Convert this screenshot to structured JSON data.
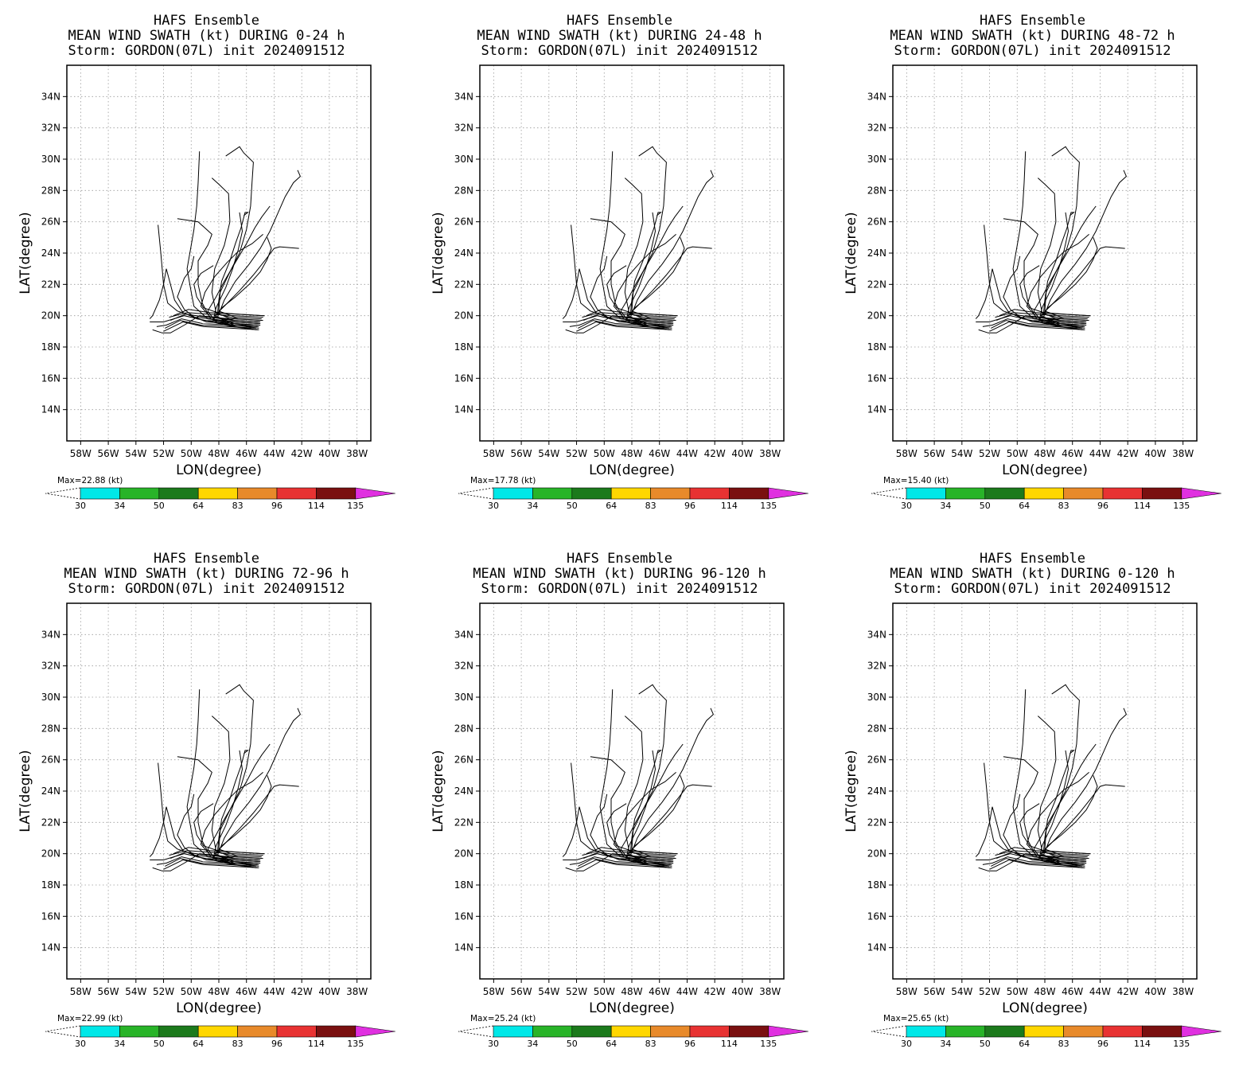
{
  "colorbar": {
    "levels": [
      "30",
      "34",
      "50",
      "64",
      "83",
      "96",
      "114",
      "135"
    ],
    "colors": [
      "#00e8e8",
      "#28b428",
      "#1c7a1c",
      "#ffd700",
      "#e88a2a",
      "#e83232",
      "#7a1010",
      "#e030e0"
    ]
  },
  "panels": [
    {
      "title1": "HAFS Ensemble",
      "title2": "MEAN WIND SWATH (kt) DURING  0-24 h",
      "title3": "Storm: GORDON(07L) init 2024091512",
      "max_label": "Max=22.88 (kt)",
      "xlabel": "LON(degree)",
      "ylabel": "LAT(degree)"
    },
    {
      "title1": "HAFS Ensemble",
      "title2": "MEAN WIND SWATH (kt) DURING 24-48 h",
      "title3": "Storm: GORDON(07L) init 2024091512",
      "max_label": "Max=17.78 (kt)",
      "xlabel": "LON(degree)",
      "ylabel": "LAT(degree)"
    },
    {
      "title1": "HAFS Ensemble",
      "title2": "MEAN WIND SWATH (kt) DURING 48-72 h",
      "title3": "Storm: GORDON(07L) init 2024091512",
      "max_label": "Max=15.40 (kt)",
      "xlabel": "LON(degree)",
      "ylabel": "LAT(degree)"
    },
    {
      "title1": "HAFS Ensemble",
      "title2": "MEAN WIND SWATH (kt) DURING 72-96 h",
      "title3": "Storm: GORDON(07L) init 2024091512",
      "max_label": "Max=22.99 (kt)",
      "xlabel": "LON(degree)",
      "ylabel": "LAT(degree)"
    },
    {
      "title1": "HAFS Ensemble",
      "title2": "MEAN WIND SWATH (kt) DURING 96-120 h",
      "title3": "Storm: GORDON(07L) init 2024091512",
      "max_label": "Max=25.24 (kt)",
      "xlabel": "LON(degree)",
      "ylabel": "LAT(degree)"
    },
    {
      "title1": "HAFS Ensemble",
      "title2": "MEAN WIND SWATH (kt) DURING 0-120 h",
      "title3": "Storm: GORDON(07L) init 2024091512",
      "max_label": "Max=25.65 (kt)",
      "xlabel": "LON(degree)",
      "ylabel": "LAT(degree)"
    }
  ],
  "chart_data": {
    "type": "line",
    "xlabel": "LON(degree)",
    "ylabel": "LAT(degree)",
    "xlim": [
      -59,
      -37
    ],
    "ylim": [
      12,
      36
    ],
    "x_ticks": [
      {
        "value": -58,
        "label": "58W"
      },
      {
        "value": -56,
        "label": "56W"
      },
      {
        "value": -54,
        "label": "54W"
      },
      {
        "value": -52,
        "label": "52W"
      },
      {
        "value": -50,
        "label": "50W"
      },
      {
        "value": -48,
        "label": "48W"
      },
      {
        "value": -46,
        "label": "46W"
      },
      {
        "value": -44,
        "label": "44W"
      },
      {
        "value": -42,
        "label": "42W"
      },
      {
        "value": -40,
        "label": "40W"
      },
      {
        "value": -38,
        "label": "38W"
      }
    ],
    "y_ticks": [
      {
        "value": 14,
        "label": "14N"
      },
      {
        "value": 16,
        "label": "16N"
      },
      {
        "value": 18,
        "label": "18N"
      },
      {
        "value": 20,
        "label": "20N"
      },
      {
        "value": 22,
        "label": "22N"
      },
      {
        "value": 24,
        "label": "24N"
      },
      {
        "value": 26,
        "label": "26N"
      },
      {
        "value": 28,
        "label": "28N"
      },
      {
        "value": 30,
        "label": "30N"
      },
      {
        "value": 32,
        "label": "32N"
      },
      {
        "value": 34,
        "label": "34N"
      }
    ],
    "grid": true,
    "tracks": [
      [
        [
          -45.0,
          19.5
        ],
        [
          -47.0,
          19.6
        ],
        [
          -49.0,
          19.7
        ],
        [
          -50.5,
          20.0
        ],
        [
          -52.0,
          19.6
        ],
        [
          -53.0,
          19.6
        ]
      ],
      [
        [
          -45.2,
          19.3
        ],
        [
          -47.2,
          19.4
        ],
        [
          -49.2,
          19.5
        ],
        [
          -50.7,
          19.8
        ],
        [
          -51.8,
          19.4
        ],
        [
          -52.5,
          19.3
        ]
      ],
      [
        [
          -45.1,
          19.1
        ],
        [
          -47.1,
          19.2
        ],
        [
          -49.1,
          19.3
        ],
        [
          -50.6,
          19.6
        ],
        [
          -52.0,
          19.0
        ]
      ],
      [
        [
          -44.9,
          19.7
        ],
        [
          -46.9,
          19.8
        ],
        [
          -48.9,
          19.9
        ],
        [
          -50.4,
          20.1
        ],
        [
          -51.5,
          19.7
        ]
      ],
      [
        [
          -44.8,
          19.9
        ],
        [
          -46.8,
          20.0
        ],
        [
          -48.8,
          20.1
        ],
        [
          -50.3,
          20.2
        ],
        [
          -51.6,
          19.9
        ]
      ],
      [
        [
          -45.3,
          19.2
        ],
        [
          -47.3,
          19.3
        ],
        [
          -49.3,
          19.4
        ],
        [
          -50.8,
          19.7
        ],
        [
          -51.9,
          19.2
        ]
      ],
      [
        [
          -44.7,
          20.0
        ],
        [
          -46.7,
          20.1
        ],
        [
          -48.7,
          20.2
        ],
        [
          -50.2,
          20.4
        ],
        [
          -51.3,
          20.0
        ]
      ],
      [
        [
          -45.0,
          19.4
        ],
        [
          -46.9,
          19.5
        ],
        [
          -48.9,
          19.6
        ],
        [
          -50.0,
          20.0
        ],
        [
          -51.0,
          20.3
        ],
        [
          -51.7,
          20.8
        ],
        [
          -52.0,
          22.0
        ],
        [
          -52.2,
          24.0
        ],
        [
          -52.4,
          25.8
        ]
      ],
      [
        [
          -45.1,
          19.5
        ],
        [
          -47.0,
          19.6
        ],
        [
          -48.8,
          19.8
        ],
        [
          -49.8,
          20.6
        ],
        [
          -50.0,
          21.5
        ],
        [
          -50.3,
          23.0
        ],
        [
          -50.0,
          24.5
        ],
        [
          -49.8,
          25.5
        ],
        [
          -49.6,
          27.0
        ],
        [
          -49.5,
          28.5
        ],
        [
          -49.4,
          30.5
        ]
      ],
      [
        [
          -45.2,
          19.3
        ],
        [
          -47.1,
          19.4
        ],
        [
          -48.6,
          19.8
        ],
        [
          -49.2,
          20.8
        ],
        [
          -49.5,
          22.0
        ],
        [
          -49.5,
          23.5
        ],
        [
          -48.8,
          24.5
        ],
        [
          -48.5,
          25.2
        ],
        [
          -49.5,
          26.0
        ],
        [
          -51.0,
          26.2
        ]
      ],
      [
        [
          -45.0,
          19.6
        ],
        [
          -46.9,
          19.7
        ],
        [
          -48.2,
          20.2
        ],
        [
          -48.5,
          21.5
        ],
        [
          -48.3,
          23.0
        ],
        [
          -47.6,
          24.5
        ],
        [
          -47.2,
          26.0
        ],
        [
          -47.3,
          27.8
        ],
        [
          -48.0,
          28.4
        ],
        [
          -48.5,
          28.8
        ]
      ],
      [
        [
          -44.9,
          19.8
        ],
        [
          -46.8,
          19.9
        ],
        [
          -48.0,
          20.3
        ],
        [
          -47.9,
          21.5
        ],
        [
          -47.2,
          22.8
        ],
        [
          -46.5,
          24.0
        ],
        [
          -46.0,
          25.5
        ],
        [
          -45.7,
          27.0
        ],
        [
          -45.6,
          28.5
        ],
        [
          -45.5,
          29.8
        ],
        [
          -46.2,
          30.4
        ],
        [
          -46.5,
          30.8
        ],
        [
          -47.0,
          30.5
        ],
        [
          -47.5,
          30.2
        ]
      ],
      [
        [
          -45.1,
          19.2
        ],
        [
          -46.9,
          19.4
        ],
        [
          -48.1,
          19.9
        ],
        [
          -47.6,
          21.0
        ],
        [
          -46.8,
          22.2
        ],
        [
          -45.8,
          23.3
        ],
        [
          -45.0,
          24.3
        ],
        [
          -44.3,
          25.4
        ],
        [
          -43.8,
          26.4
        ],
        [
          -43.2,
          27.6
        ],
        [
          -42.6,
          28.5
        ],
        [
          -42.1,
          28.9
        ],
        [
          -42.3,
          29.3
        ]
      ],
      [
        [
          -45.0,
          19.4
        ],
        [
          -46.9,
          19.5
        ],
        [
          -48.3,
          20.0
        ],
        [
          -47.5,
          20.7
        ],
        [
          -46.5,
          21.6
        ],
        [
          -45.5,
          22.6
        ],
        [
          -44.6,
          23.6
        ],
        [
          -44.0,
          24.3
        ],
        [
          -43.6,
          24.4
        ],
        [
          -42.2,
          24.3
        ]
      ],
      [
        [
          -45.3,
          19.1
        ],
        [
          -47.0,
          19.3
        ],
        [
          -48.5,
          19.6
        ],
        [
          -47.8,
          20.5
        ],
        [
          -46.8,
          21.2
        ],
        [
          -45.8,
          22.0
        ],
        [
          -45.0,
          22.8
        ],
        [
          -44.5,
          23.6
        ],
        [
          -44.2,
          24.3
        ],
        [
          -44.5,
          25.0
        ]
      ],
      [
        [
          -45.2,
          19.3
        ],
        [
          -47.0,
          19.5
        ],
        [
          -48.4,
          19.7
        ],
        [
          -48.2,
          20.5
        ],
        [
          -47.5,
          21.8
        ],
        [
          -47.0,
          23.0
        ],
        [
          -46.6,
          24.2
        ],
        [
          -46.3,
          25.4
        ],
        [
          -46.5,
          26.6
        ]
      ],
      [
        [
          -44.8,
          19.7
        ],
        [
          -46.6,
          19.8
        ],
        [
          -48.1,
          20.1
        ],
        [
          -48.0,
          21.0
        ],
        [
          -47.8,
          22.2
        ],
        [
          -47.2,
          23.5
        ],
        [
          -46.8,
          24.6
        ],
        [
          -46.4,
          25.6
        ],
        [
          -46.1,
          26.6
        ],
        [
          -45.9,
          26.6
        ],
        [
          -46.2,
          26.4
        ]
      ],
      [
        [
          -45.0,
          19.5
        ],
        [
          -46.8,
          19.6
        ],
        [
          -48.6,
          19.8
        ],
        [
          -49.8,
          19.9
        ],
        [
          -50.6,
          20.2
        ],
        [
          -51.2,
          21.0
        ],
        [
          -51.5,
          22.0
        ],
        [
          -51.8,
          23.0
        ],
        [
          -52.0,
          22.0
        ],
        [
          -52.3,
          21.0
        ],
        [
          -52.8,
          20.0
        ],
        [
          -53.0,
          19.8
        ]
      ],
      [
        [
          -45.1,
          19.3
        ],
        [
          -46.9,
          19.4
        ],
        [
          -48.4,
          19.6
        ],
        [
          -49.6,
          19.8
        ],
        [
          -50.5,
          20.4
        ],
        [
          -51.0,
          21.2
        ],
        [
          -50.5,
          22.4
        ],
        [
          -50.0,
          23.0
        ],
        [
          -49.8,
          23.8
        ]
      ],
      [
        [
          -45.0,
          19.6
        ],
        [
          -46.8,
          19.7
        ],
        [
          -48.2,
          19.9
        ],
        [
          -49.4,
          20.0
        ],
        [
          -50.5,
          19.4
        ],
        [
          -51.5,
          18.9
        ],
        [
          -52.1,
          18.9
        ],
        [
          -52.8,
          19.1
        ]
      ],
      [
        [
          -44.7,
          20.0
        ],
        [
          -46.6,
          20.1
        ],
        [
          -48.1,
          20.2
        ],
        [
          -49.1,
          20.5
        ],
        [
          -49.6,
          21.2
        ],
        [
          -49.8,
          22.0
        ],
        [
          -49.3,
          22.7
        ],
        [
          -48.4,
          23.2
        ]
      ],
      [
        [
          -45.2,
          19.1
        ],
        [
          -46.8,
          19.3
        ],
        [
          -48.2,
          19.6
        ],
        [
          -48.8,
          20.3
        ],
        [
          -48.2,
          21.2
        ],
        [
          -47.6,
          22.2
        ],
        [
          -46.8,
          23.4
        ],
        [
          -46.0,
          24.6
        ],
        [
          -45.4,
          25.6
        ],
        [
          -44.9,
          26.3
        ],
        [
          -44.3,
          27.0
        ]
      ],
      [
        [
          -45.1,
          19.6
        ],
        [
          -47.0,
          19.7
        ],
        [
          -48.6,
          19.9
        ],
        [
          -49.3,
          20.6
        ],
        [
          -49.0,
          21.5
        ],
        [
          -48.3,
          22.5
        ],
        [
          -47.4,
          23.4
        ],
        [
          -46.6,
          24.1
        ],
        [
          -45.6,
          24.6
        ],
        [
          -44.8,
          25.2
        ]
      ]
    ]
  }
}
